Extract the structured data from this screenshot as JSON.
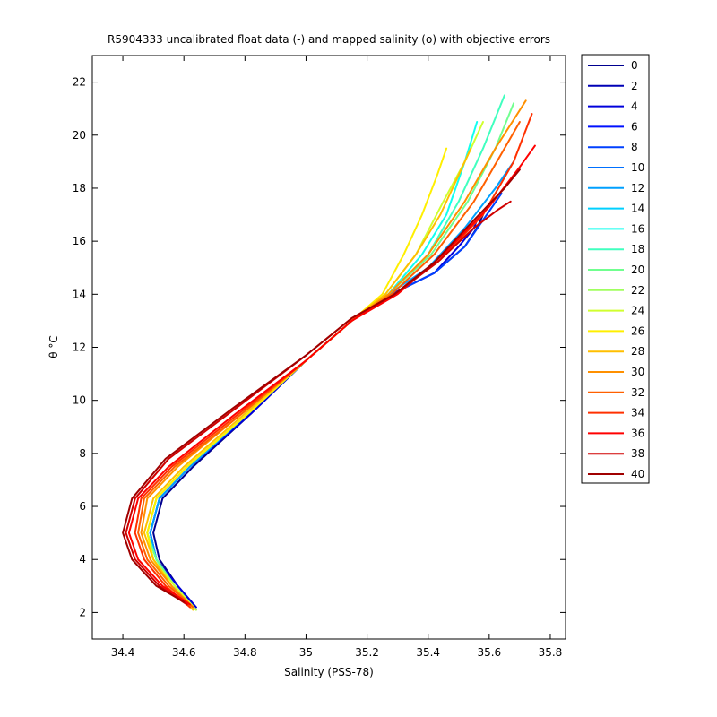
{
  "chart_data": {
    "type": "line",
    "title": "R5904333 uncalibrated float data (-) and mapped salinity (o) with objective errors",
    "xlabel": "Salinity (PSS-78)",
    "ylabel": "θ °C",
    "xlim": [
      34.3,
      35.85
    ],
    "ylim": [
      1.0,
      23.0
    ],
    "xticks": [
      "34.4",
      "34.6",
      "34.8",
      "35",
      "35.2",
      "35.4",
      "35.6",
      "35.8"
    ],
    "yticks": [
      "2",
      "4",
      "6",
      "8",
      "10",
      "12",
      "14",
      "16",
      "18",
      "20",
      "22"
    ],
    "grid": false,
    "legend_position": "outside-right",
    "legend": [
      "0",
      "2",
      "4",
      "6",
      "8",
      "10",
      "12",
      "14",
      "16",
      "18",
      "20",
      "22",
      "24",
      "26",
      "28",
      "30",
      "32",
      "34",
      "36",
      "38",
      "40"
    ],
    "legend_colors": [
      "#00008F",
      "#0000B5",
      "#0000DB",
      "#0010FF",
      "#0040FF",
      "#0070FF",
      "#00A0FF",
      "#00D0FF",
      "#10FFEF",
      "#40FFBF",
      "#70FF8F",
      "#A0FF5F",
      "#D0FF2F",
      "#FFEF00",
      "#FFBF00",
      "#FF9000",
      "#FF6000",
      "#FF3000",
      "#FF0000",
      "#D00000",
      "#A00000"
    ],
    "series": [
      {
        "profile": 0,
        "x": [
          34.64,
          34.58,
          34.52,
          34.5,
          34.53,
          34.63,
          34.82,
          35.0,
          35.15,
          35.28,
          35.42,
          35.52,
          35.56,
          35.58
        ],
        "y": [
          2.2,
          3.0,
          4.0,
          5.0,
          6.3,
          7.5,
          9.5,
          11.5,
          13.0,
          14.0,
          14.8,
          15.8,
          16.5,
          17.0
        ]
      },
      {
        "profile": 4,
        "x": [
          34.64,
          34.58,
          34.51,
          34.49,
          34.52,
          34.62,
          34.82,
          35.0,
          35.15,
          35.28,
          35.42,
          35.5,
          35.55,
          35.56
        ],
        "y": [
          2.2,
          3.0,
          4.0,
          5.0,
          6.3,
          7.5,
          9.5,
          11.5,
          13.0,
          14.0,
          14.8,
          15.8,
          16.5,
          16.8
        ]
      },
      {
        "profile": 8,
        "x": [
          34.64,
          34.57,
          34.51,
          34.49,
          34.52,
          34.62,
          34.81,
          35.0,
          35.15,
          35.28,
          35.42,
          35.52,
          35.58,
          35.64
        ],
        "y": [
          2.1,
          3.0,
          4.0,
          5.0,
          6.3,
          7.5,
          9.5,
          11.5,
          13.0,
          14.0,
          14.8,
          15.8,
          16.8,
          17.8
        ]
      },
      {
        "profile": 12,
        "x": [
          34.64,
          34.57,
          34.51,
          34.49,
          34.52,
          34.62,
          34.81,
          35.0,
          35.15,
          35.27,
          35.4,
          35.52,
          35.62,
          35.68
        ],
        "y": [
          2.1,
          3.0,
          4.0,
          5.0,
          6.3,
          7.5,
          9.5,
          11.5,
          13.0,
          14.0,
          15.0,
          16.5,
          18.0,
          19.0
        ]
      },
      {
        "profile": 16,
        "x": [
          34.64,
          34.57,
          34.51,
          34.48,
          34.51,
          34.61,
          34.81,
          35.0,
          35.15,
          35.27,
          35.38,
          35.46,
          35.52,
          35.56
        ],
        "y": [
          2.1,
          3.0,
          4.0,
          5.0,
          6.3,
          7.5,
          9.5,
          11.5,
          13.0,
          14.0,
          15.5,
          17.0,
          19.0,
          20.5
        ]
      },
      {
        "profile": 18,
        "x": [
          34.64,
          34.57,
          34.51,
          34.48,
          34.51,
          34.61,
          34.81,
          35.0,
          35.15,
          35.27,
          35.4,
          35.5,
          35.58,
          35.65
        ],
        "y": [
          2.1,
          3.0,
          4.0,
          5.0,
          6.3,
          7.5,
          9.5,
          11.5,
          13.0,
          14.0,
          15.5,
          17.5,
          19.5,
          21.5
        ]
      },
      {
        "profile": 20,
        "x": [
          34.64,
          34.57,
          34.51,
          34.48,
          34.51,
          34.61,
          34.81,
          35.0,
          35.15,
          35.27,
          35.41,
          35.53,
          35.62,
          35.68
        ],
        "y": [
          2.1,
          3.0,
          4.0,
          5.0,
          6.3,
          7.5,
          9.5,
          11.5,
          13.0,
          14.0,
          15.5,
          17.5,
          19.5,
          21.2
        ]
      },
      {
        "profile": 24,
        "x": [
          34.64,
          34.57,
          34.5,
          34.48,
          34.51,
          34.61,
          34.81,
          35.0,
          35.15,
          35.26,
          35.36,
          35.45,
          35.52,
          35.58
        ],
        "y": [
          2.1,
          3.0,
          4.0,
          5.0,
          6.3,
          7.5,
          9.5,
          11.5,
          13.0,
          14.0,
          15.5,
          17.5,
          19.0,
          20.5
        ]
      },
      {
        "profile": 26,
        "x": [
          34.63,
          34.56,
          34.5,
          34.48,
          34.51,
          34.61,
          34.81,
          35.0,
          35.15,
          35.25,
          35.32,
          35.38,
          35.43,
          35.46
        ],
        "y": [
          2.1,
          3.0,
          4.0,
          5.0,
          6.3,
          7.5,
          9.5,
          11.5,
          13.0,
          14.0,
          15.5,
          17.0,
          18.5,
          19.5
        ]
      },
      {
        "profile": 28,
        "x": [
          34.63,
          34.56,
          34.5,
          34.47,
          34.5,
          34.6,
          34.8,
          35.0,
          35.15,
          35.26,
          35.36,
          35.44,
          35.5,
          35.54
        ],
        "y": [
          2.1,
          3.0,
          4.0,
          5.0,
          6.3,
          7.5,
          9.5,
          11.5,
          13.0,
          14.0,
          15.5,
          17.0,
          18.5,
          19.5
        ]
      },
      {
        "profile": 30,
        "x": [
          34.63,
          34.56,
          34.49,
          34.46,
          34.48,
          34.58,
          34.79,
          35.0,
          35.15,
          35.27,
          35.4,
          35.52,
          35.62,
          35.72
        ],
        "y": [
          2.2,
          3.0,
          4.0,
          5.0,
          6.3,
          7.5,
          9.5,
          11.5,
          13.0,
          14.0,
          15.5,
          17.5,
          19.5,
          21.3
        ]
      },
      {
        "profile": 32,
        "x": [
          34.63,
          34.55,
          34.48,
          34.45,
          34.47,
          34.57,
          34.79,
          35.0,
          35.15,
          35.28,
          35.42,
          35.55,
          35.64,
          35.7
        ],
        "y": [
          2.2,
          3.0,
          4.0,
          5.0,
          6.3,
          7.5,
          9.5,
          11.5,
          13.0,
          14.0,
          15.5,
          17.5,
          19.3,
          20.5
        ]
      },
      {
        "profile": 34,
        "x": [
          34.62,
          34.54,
          34.47,
          34.44,
          34.46,
          34.56,
          34.78,
          35.0,
          35.15,
          35.29,
          35.44,
          35.58,
          35.68,
          35.74
        ],
        "y": [
          2.2,
          3.0,
          4.0,
          5.0,
          6.3,
          7.5,
          9.5,
          11.5,
          13.0,
          14.0,
          15.3,
          17.0,
          19.0,
          20.8
        ]
      },
      {
        "profile": 36,
        "x": [
          34.62,
          34.53,
          34.45,
          34.42,
          34.45,
          34.55,
          34.77,
          35.0,
          35.15,
          35.3,
          35.45,
          35.6,
          35.7,
          35.75
        ],
        "y": [
          2.3,
          3.0,
          4.0,
          5.0,
          6.3,
          7.5,
          9.5,
          11.5,
          13.0,
          14.0,
          15.5,
          17.3,
          18.8,
          19.6
        ]
      },
      {
        "profile": 38,
        "x": [
          34.61,
          34.52,
          34.44,
          34.41,
          34.44,
          34.55,
          34.77,
          35.0,
          35.15,
          35.29,
          35.43,
          35.55,
          35.63,
          35.67
        ],
        "y": [
          2.3,
          3.0,
          4.0,
          5.0,
          6.3,
          7.8,
          9.7,
          11.7,
          13.1,
          14.0,
          15.2,
          16.5,
          17.2,
          17.5
        ]
      },
      {
        "profile": 40,
        "x": [
          34.6,
          34.51,
          34.43,
          34.4,
          34.43,
          34.54,
          34.76,
          35.0,
          35.15,
          35.29,
          35.42,
          35.55,
          35.65,
          35.7
        ],
        "y": [
          2.4,
          3.0,
          4.0,
          5.0,
          6.3,
          7.8,
          9.7,
          11.7,
          13.1,
          14.0,
          15.2,
          16.8,
          18.0,
          18.7
        ]
      }
    ]
  }
}
